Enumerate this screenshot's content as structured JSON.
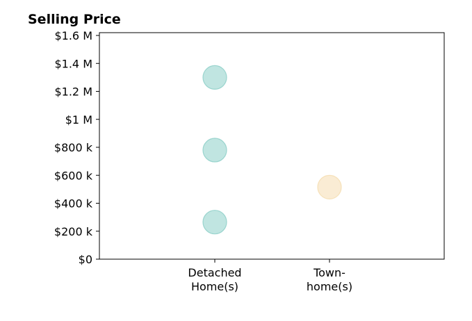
{
  "chart_data": {
    "type": "scatter",
    "title": "Selling Price",
    "xlabel": "",
    "ylabel": "",
    "categories": [
      [
        "Detached",
        "Home(s)"
      ],
      [
        "Town-",
        "home(s)"
      ]
    ],
    "ylim": [
      0,
      1620000
    ],
    "yticks": [
      {
        "value": 0,
        "label": "$0"
      },
      {
        "value": 200000,
        "label": "$200 k"
      },
      {
        "value": 400000,
        "label": "$400 k"
      },
      {
        "value": 600000,
        "label": "$600 k"
      },
      {
        "value": 800000,
        "label": "$800 k"
      },
      {
        "value": 1000000,
        "label": "$1 M"
      },
      {
        "value": 1200000,
        "label": "$1.2 M"
      },
      {
        "value": 1400000,
        "label": "$1.4 M"
      },
      {
        "value": 1600000,
        "label": "$1.6 M"
      }
    ],
    "points": [
      {
        "category": 0,
        "y": 1300000
      },
      {
        "category": 0,
        "y": 780000
      },
      {
        "category": 0,
        "y": 265000
      },
      {
        "category": 1,
        "y": 515000
      }
    ],
    "point_colors": [
      "#8dcfc8",
      "#f5ddb0"
    ],
    "grid": false,
    "legend": "none"
  }
}
